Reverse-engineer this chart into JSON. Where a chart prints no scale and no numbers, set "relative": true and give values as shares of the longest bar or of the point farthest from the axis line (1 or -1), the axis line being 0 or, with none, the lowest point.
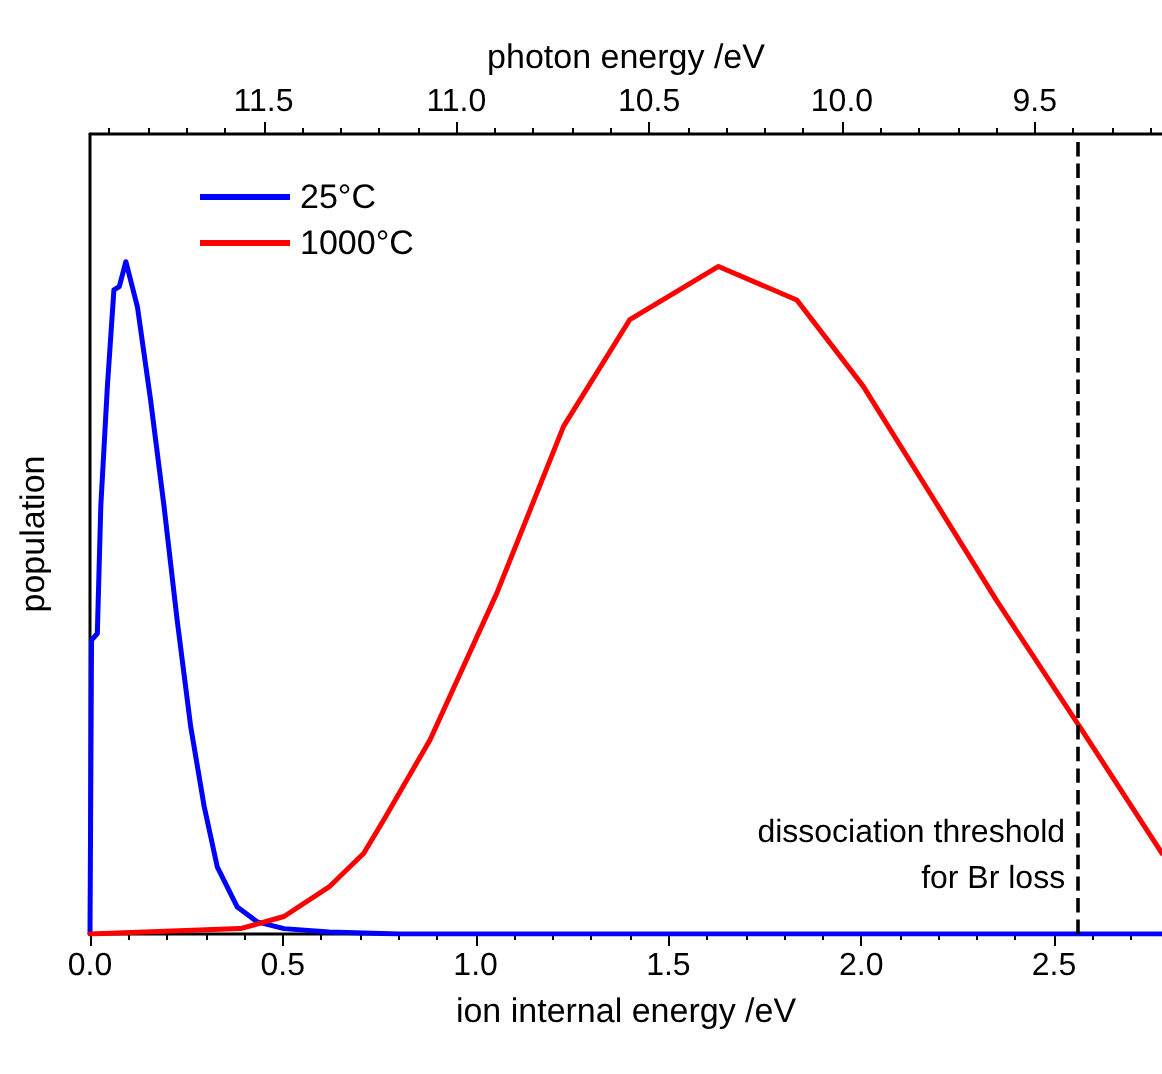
{
  "chart_data": {
    "type": "line",
    "xlabel": "ion internal energy /eV",
    "x2label": "photon energy /eV",
    "ylabel": "population",
    "relative": true,
    "xlim": [
      0,
      2.78
    ],
    "xticks": [
      {
        "value": 0,
        "label": "0.0"
      },
      0.5,
      {
        "value": 1,
        "label": "1.0"
      },
      1.5,
      {
        "value": 2,
        "label": "2.0"
      },
      2.5
    ],
    "x2lim": [
      11.95,
      9.17
    ],
    "x2ticks": [
      11.5,
      {
        "value": 11,
        "label": "11.0"
      },
      10.5,
      {
        "value": 10,
        "label": "10.0"
      },
      9.5
    ],
    "series": [
      {
        "name": "25°C",
        "color": "#0000ff",
        "x": [
          0,
          0.004,
          0.019,
          0.028,
          0.045,
          0.062,
          0.076,
          0.093,
          0.123,
          0.157,
          0.192,
          0.226,
          0.261,
          0.296,
          0.33,
          0.382,
          0.434,
          0.503,
          0.62,
          0.8,
          2.78
        ],
        "values": [
          0,
          0.437,
          0.447,
          0.636,
          0.814,
          0.958,
          0.963,
          1,
          0.933,
          0.795,
          0.636,
          0.467,
          0.309,
          0.19,
          0.1,
          0.04,
          0.018,
          0.008,
          0.003,
          0,
          0
        ]
      },
      {
        "name": "1000°C",
        "color": "#ff0000",
        "x": [
          0,
          0.39,
          0.503,
          0.62,
          0.71,
          0.762,
          0.882,
          1.055,
          1.228,
          1.4,
          1.63,
          1.833,
          2.005,
          2.178,
          2.35,
          2.566,
          2.78
        ],
        "values": [
          0,
          0.008,
          0.026,
          0.07,
          0.12,
          0.17,
          0.289,
          0.507,
          0.755,
          0.914,
          0.993,
          0.943,
          0.815,
          0.656,
          0.497,
          0.309,
          0.12
        ]
      }
    ],
    "ref_lines": [
      {
        "axis": "x",
        "value": 2.56,
        "label": "dissociation threshold\nfor Br loss",
        "color": "#000000",
        "line_style": "dashed"
      }
    ],
    "legend": "top left",
    "grid": false,
    "marker": "none",
    "line_style": "solid",
    "tick_labels": "x"
  }
}
